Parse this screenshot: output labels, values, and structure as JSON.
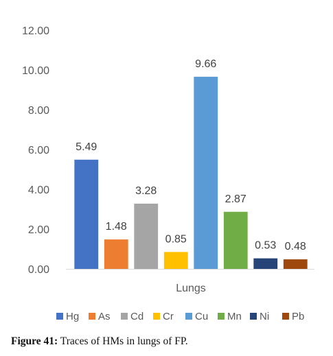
{
  "chart_data": {
    "type": "bar",
    "xlabel": "Lungs",
    "ylim": [
      0,
      12
    ],
    "y_ticks": [
      "0.00",
      "2.00",
      "4.00",
      "6.00",
      "8.00",
      "10.00",
      "12.00"
    ],
    "legend_position": "bottom",
    "series": [
      {
        "name": "Hg",
        "value": 5.49,
        "label": "5.49",
        "color": "#4472C4"
      },
      {
        "name": "As",
        "value": 1.48,
        "label": "1.48",
        "color": "#ED7D31"
      },
      {
        "name": "Cd",
        "value": 3.28,
        "label": "3.28",
        "color": "#A5A5A5"
      },
      {
        "name": "Cr",
        "value": 0.85,
        "label": "0.85",
        "color": "#FFC000"
      },
      {
        "name": "Cu",
        "value": 9.66,
        "label": "9.66",
        "color": "#5B9BD5"
      },
      {
        "name": "Mn",
        "value": 2.87,
        "label": "2.87",
        "color": "#70AD47"
      },
      {
        "name": "Ni",
        "value": 0.53,
        "label": "0.53",
        "color": "#264478"
      },
      {
        "name": "Pb",
        "value": 0.48,
        "label": "0.48",
        "color": "#9E480E"
      }
    ]
  },
  "caption": {
    "label": "Figure 41:",
    "text": " Traces of HMs in lungs of FP."
  }
}
